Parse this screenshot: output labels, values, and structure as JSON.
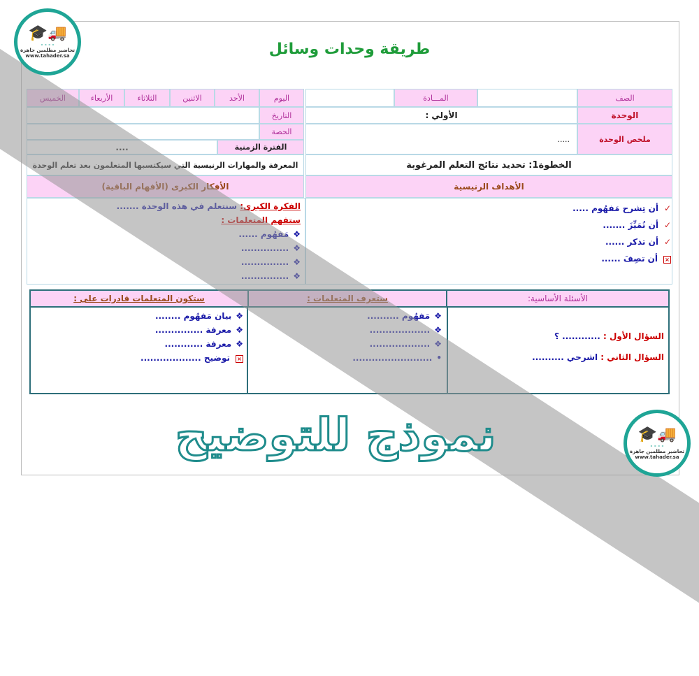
{
  "title": "طريقة وحدات وسائل",
  "watermark": "نموذج للتوضيح",
  "logo": {
    "text": "تحاضير مطلمين جاهزة",
    "url": "www.tahader.sa",
    "icon": "truck-graduation-cap-icon"
  },
  "header": {
    "grade_label": "الصف",
    "subject_label": "المـــادة",
    "unit_label": "الوحدة",
    "unit_value": "الأولي :",
    "summary_label": "ملخص الوحدة",
    "summary_value": ".....",
    "day_label": "اليوم",
    "days": [
      "الأحد",
      "الاثنين",
      "الثلاثاء",
      "الأربعاء",
      "الخميس"
    ],
    "date_label": "التاريخ",
    "period_label": "الحصة",
    "duration_label": "الفترة الزمنية",
    "duration_value": "....",
    "knowledge_label": "المعرفة والمهارات الرنيسية التي سيكتسبها المتعلمون بعد تعلم الوحدة",
    "step1": "الخطوة1: تحديد نتائج التعلم المرغوبة",
    "big_ideas_label": "الأفكار الكبرى (الأفهام الباقية)",
    "goals_label": "الأهداف الرنيسية"
  },
  "goals": [
    "أن تِشرح مَفهُوم .....",
    "أن تُمَيِّزَ .......",
    "أن تذكر ......",
    "أن تصِفَ ......"
  ],
  "big_ideas": {
    "line1_label": "الفكرة الكبرى:",
    "line1_text": "سنتعلم في هذه الوحدة .......",
    "understand_label": "ستفهم المتعلمات :",
    "items": [
      "مَفهُوم ......",
      "...............",
      "...............",
      "..............."
    ]
  },
  "bottom": {
    "q_label": "الأسئلة الأساسية:",
    "know_label": "ستعرف المتعلمات :",
    "able_label": "ستكون المتعلمات قادرات على :",
    "q1_label": "السؤال الأول :",
    "q1_text": "............ ؟",
    "q2_label": "السؤال الثاني :",
    "q2_text": "اشرحي ..........",
    "know_items": [
      "مَفهُوم ..........",
      "...................",
      "...................",
      "........................."
    ],
    "able_items": [
      "بيان مَفهُوم ........",
      "معرفة ...............",
      "معرفة ............",
      "توضيح ..................."
    ]
  }
}
